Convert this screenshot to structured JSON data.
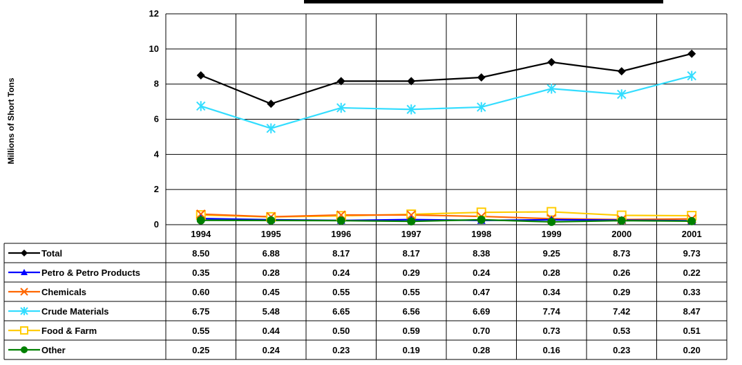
{
  "chart_data": {
    "type": "line",
    "ylabel": "Millions of Short Tons",
    "x": [
      "1994",
      "1995",
      "1996",
      "1997",
      "1998",
      "1999",
      "2000",
      "2001"
    ],
    "ylim": [
      0,
      12
    ],
    "yticks": [
      "0",
      "2",
      "4",
      "6",
      "8",
      "10",
      "12"
    ],
    "grid": true,
    "legend_placement": "data-table-left",
    "series": [
      {
        "name": "Total",
        "color": "#000000",
        "marker": "diamond",
        "values": [
          8.5,
          6.88,
          8.17,
          8.17,
          8.38,
          9.25,
          8.73,
          9.73
        ],
        "labels": [
          "8.50",
          "6.88",
          "8.17",
          "8.17",
          "8.38",
          "9.25",
          "8.73",
          "9.73"
        ]
      },
      {
        "name": "Petro & Petro Products",
        "color": "#0000ff",
        "marker": "triangle",
        "values": [
          0.35,
          0.28,
          0.24,
          0.29,
          0.24,
          0.28,
          0.26,
          0.22
        ],
        "labels": [
          "0.35",
          "0.28",
          "0.24",
          "0.29",
          "0.24",
          "0.28",
          "0.26",
          "0.22"
        ]
      },
      {
        "name": "Chemicals",
        "color": "#ff6600",
        "marker": "x",
        "values": [
          0.6,
          0.45,
          0.55,
          0.55,
          0.47,
          0.34,
          0.29,
          0.33
        ],
        "labels": [
          "0.60",
          "0.45",
          "0.55",
          "0.55",
          "0.47",
          "0.34",
          "0.29",
          "0.33"
        ]
      },
      {
        "name": "Crude Materials",
        "color": "#33ddff",
        "marker": "asterisk",
        "values": [
          6.75,
          5.48,
          6.65,
          6.56,
          6.69,
          7.74,
          7.42,
          8.47
        ],
        "labels": [
          "6.75",
          "5.48",
          "6.65",
          "6.56",
          "6.69",
          "7.74",
          "7.42",
          "8.47"
        ]
      },
      {
        "name": "Food & Farm",
        "color": "#ffcc00",
        "marker": "square",
        "values": [
          0.55,
          0.44,
          0.5,
          0.59,
          0.7,
          0.73,
          0.53,
          0.51
        ],
        "labels": [
          "0.55",
          "0.44",
          "0.50",
          "0.59",
          "0.70",
          "0.73",
          "0.53",
          "0.51"
        ]
      },
      {
        "name": "Other",
        "color": "#008000",
        "marker": "circle",
        "values": [
          0.25,
          0.24,
          0.23,
          0.19,
          0.28,
          0.16,
          0.23,
          0.2
        ],
        "labels": [
          "0.25",
          "0.24",
          "0.23",
          "0.19",
          "0.28",
          "0.16",
          "0.23",
          "0.20"
        ]
      }
    ]
  }
}
